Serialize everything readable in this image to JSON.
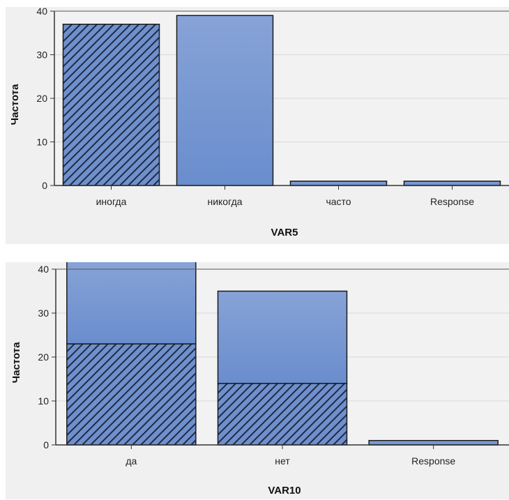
{
  "chart_data": [
    {
      "type": "bar",
      "xlabel": "VAR5",
      "ylabel": "Частота",
      "categories": [
        "иногда",
        "никогда",
        "часто",
        "Response"
      ],
      "ylim": [
        0,
        40
      ],
      "yticks": [
        0,
        10,
        20,
        30,
        40
      ],
      "grid": true,
      "series": [
        {
          "values": [
            37,
            0,
            0,
            0
          ],
          "pattern": "hatched"
        },
        {
          "values": [
            0,
            39,
            1,
            1
          ],
          "pattern": "solid"
        }
      ],
      "colors": {
        "bar_top": "#86a2d6",
        "bar_bottom": "#6b8fcf",
        "plot_bg": "#f0f0f0",
        "hatch": "#1e2a44"
      }
    },
    {
      "type": "bar",
      "stacked": true,
      "xlabel": "VAR10",
      "ylabel": "Частота",
      "categories": [
        "да",
        "нет",
        "Response"
      ],
      "ylim": [
        0,
        40
      ],
      "yticks": [
        0,
        10,
        20,
        30,
        40
      ],
      "grid": true,
      "series": [
        {
          "values": [
            23,
            14,
            0
          ],
          "pattern": "hatched"
        },
        {
          "values": [
            19,
            21,
            1
          ],
          "pattern": "solid"
        }
      ],
      "colors": {
        "bar_top": "#86a2d6",
        "bar_bottom": "#6b8fcf",
        "plot_bg": "#f0f0f0",
        "hatch": "#1e2a44"
      }
    }
  ]
}
